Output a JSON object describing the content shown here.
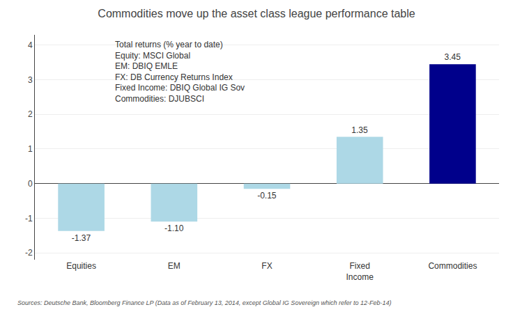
{
  "chart_data": {
    "type": "bar",
    "title": "Commodities move up the asset class league performance table",
    "categories": [
      "Equities",
      "EM",
      "FX",
      "Fixed\nIncome",
      "Commodities"
    ],
    "values": [
      -1.37,
      -1.1,
      -0.15,
      1.35,
      3.45
    ],
    "value_labels": [
      "-1.37",
      "-1.10",
      "-0.15",
      "1.35",
      "3.45"
    ],
    "data_labels": true,
    "colors": [
      "#ADD8E6",
      "#ADD8E6",
      "#ADD8E6",
      "#ADD8E6",
      "#00008B"
    ],
    "ylim": [
      -2.2,
      4.3
    ],
    "yticks": [
      -2,
      -1,
      0,
      1,
      2,
      3,
      4
    ],
    "grid": true,
    "annotations": [
      "Total returns (% year to date)",
      "Equity: MSCI Global",
      "EM: DBIQ EMLE",
      "FX: DB Currency Returns Index",
      "Fixed Income: DBIQ Global IG Sov",
      "Commodities: DJUBSCI",
      "Sources: Deutsche Bank, Bloomberg Finance LP (Data as of February 13, 2014, except Global IG Sovereign which refer to 12-Feb-14)"
    ]
  }
}
